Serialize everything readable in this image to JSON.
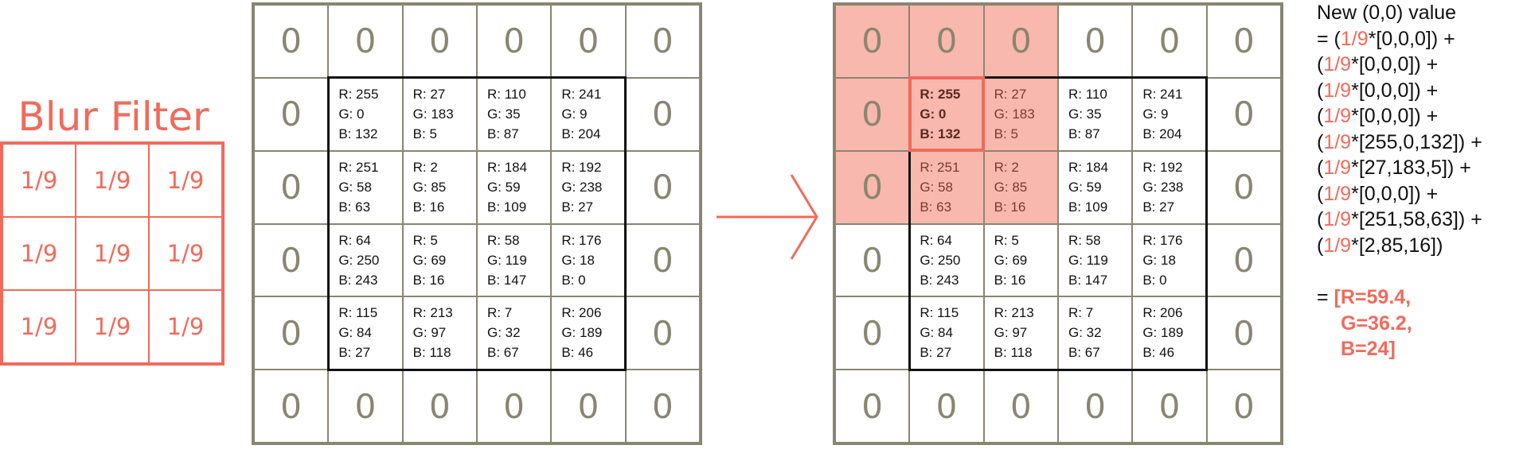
{
  "filter": {
    "title": "Blur Filter",
    "weights": [
      "1/9",
      "1/9",
      "1/9",
      "1/9",
      "1/9",
      "1/9",
      "1/9",
      "1/9",
      "1/9"
    ]
  },
  "padding_value": "0",
  "pixels": [
    [
      {
        "r": "R: 255",
        "g": "G: 0",
        "b": "B: 132"
      },
      {
        "r": "R: 27",
        "g": "G: 183",
        "b": "B: 5"
      },
      {
        "r": "R: 110",
        "g": "G: 35",
        "b": "B: 87"
      },
      {
        "r": "R: 241",
        "g": "G: 9",
        "b": "B: 204"
      }
    ],
    [
      {
        "r": "R: 251",
        "g": "G: 58",
        "b": "B: 63"
      },
      {
        "r": "R: 2",
        "g": "G: 85",
        "b": "B: 16"
      },
      {
        "r": "R: 184",
        "g": "G: 59",
        "b": "B: 109"
      },
      {
        "r": "R: 192",
        "g": "G: 238",
        "b": "B: 27"
      }
    ],
    [
      {
        "r": "R: 64",
        "g": "G: 250",
        "b": "B: 243"
      },
      {
        "r": "R: 5",
        "g": "G: 69",
        "b": "B: 16"
      },
      {
        "r": "R: 58",
        "g": "G: 119",
        "b": "B: 147"
      },
      {
        "r": "R: 176",
        "g": "G: 18",
        "b": "B: 0"
      }
    ],
    [
      {
        "r": "R: 115",
        "g": "G: 84",
        "b": "B: 27"
      },
      {
        "r": "R: 213",
        "g": "G: 97",
        "b": "B: 118"
      },
      {
        "r": "R: 7",
        "g": "G: 32",
        "b": "B: 67"
      },
      {
        "r": "R: 206",
        "g": "G: 189",
        "b": "B: 46"
      }
    ]
  ],
  "formula": {
    "heading": "New (0,0) value",
    "terms": [
      {
        "prefix": "= (",
        "weight": "1/9",
        "rest": "*[0,0,0]) +"
      },
      {
        "prefix": "(",
        "weight": "1/9",
        "rest": "*[0,0,0]) +"
      },
      {
        "prefix": "(",
        "weight": "1/9",
        "rest": "*[0,0,0]) +"
      },
      {
        "prefix": "(",
        "weight": "1/9",
        "rest": "*[0,0,0]) +"
      },
      {
        "prefix": "(",
        "weight": "1/9",
        "rest": "*[255,0,132]) +"
      },
      {
        "prefix": "(",
        "weight": "1/9",
        "rest": "*[27,183,5]) +"
      },
      {
        "prefix": "(",
        "weight": "1/9",
        "rest": "*[0,0,0]) +"
      },
      {
        "prefix": "(",
        "weight": "1/9",
        "rest": "*[251,58,63]) +"
      },
      {
        "prefix": "(",
        "weight": "1/9",
        "rest": "*[2,85,16])"
      }
    ],
    "result_prefix": "= ",
    "result": [
      "[R=59.4,",
      "G=36.2,",
      "B=24]"
    ]
  },
  "colors": {
    "accent": "#f26a5a",
    "highlight": "#f8b8ae",
    "grid": "#8a8570",
    "inner_border": "#111111"
  }
}
